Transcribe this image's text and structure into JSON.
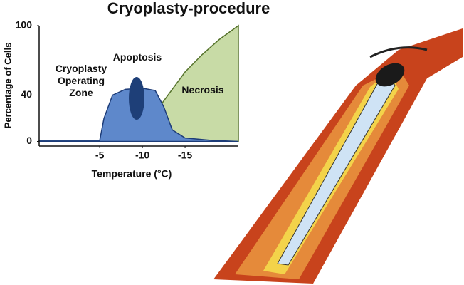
{
  "chart_data": {
    "type": "area",
    "title": "Cryoplasty-procedure",
    "y_label": "Percentage of Cells",
    "x_label": "Temperature (°C)",
    "annotations": [
      "Cryoplasty\nOperating\nZone",
      "Apoptosis",
      "Necrosis"
    ],
    "xlim": [
      2.1,
      -21.25
    ],
    "xticks": [
      -5,
      -10,
      -15
    ],
    "ylim": [
      -4,
      100
    ],
    "yticks": [
      0,
      40,
      100
    ],
    "series": [
      {
        "color": "#c8dba6",
        "line_color": "#56732c",
        "x": [
          -10.4,
          -11,
          -12,
          -13.5,
          -15,
          -17,
          -19,
          -21.25
        ],
        "values": [
          0,
          15,
          30,
          45,
          60,
          75,
          88,
          100
        ]
      },
      {
        "color": "#5e88cb",
        "line_color": "#1d3c78",
        "x": [
          2.1,
          -5,
          -5.5,
          -6.5,
          -8,
          -10,
          -11.5,
          -12.5,
          -13.5,
          -15,
          -18,
          -21.25
        ],
        "values": [
          1,
          1,
          20,
          40,
          45,
          46,
          44,
          30,
          10,
          3,
          1,
          0
        ]
      }
    ]
  }
}
